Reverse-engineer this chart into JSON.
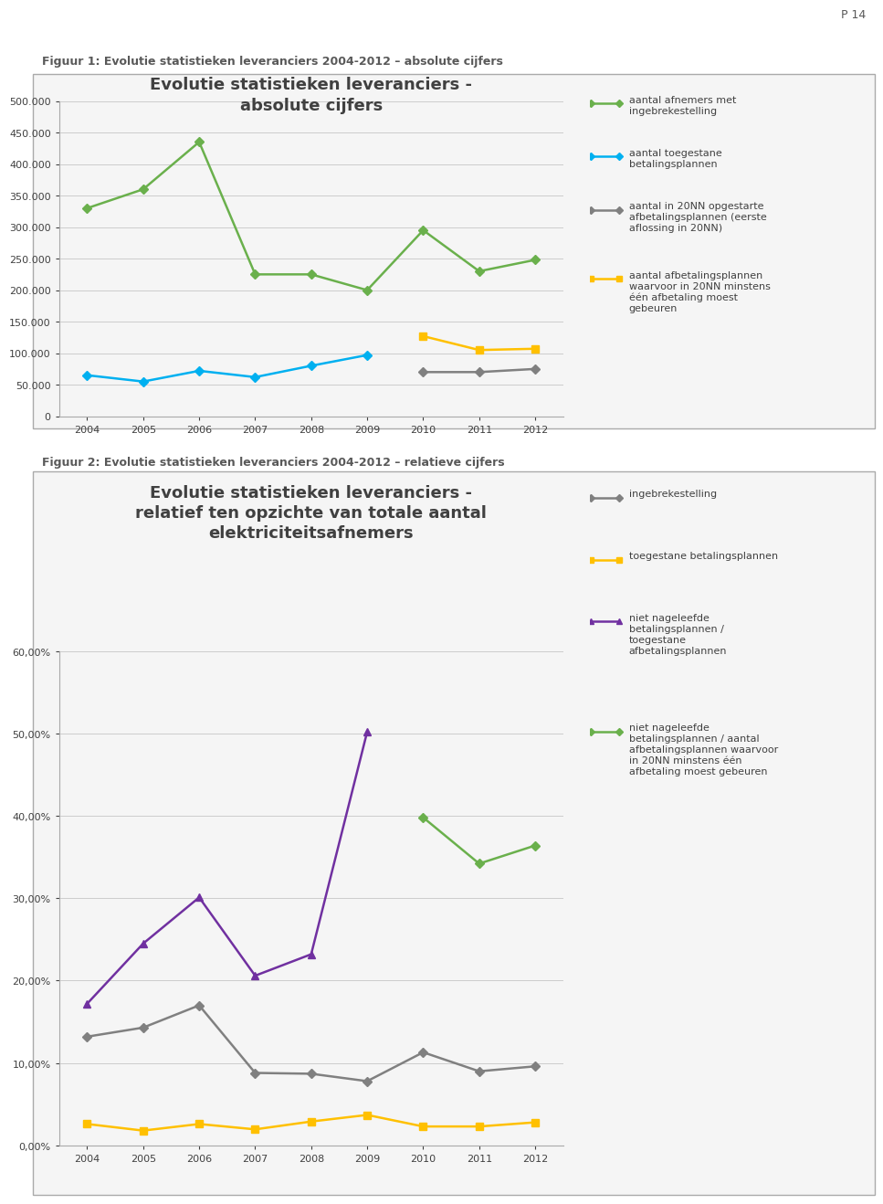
{
  "page_label": "P 14",
  "fig1_caption": "Figuur 1: Evolutie statistieken leveranciers 2004-2012 – absolute cijfers",
  "fig2_caption": "Figuur 2: Evolutie statistieken leveranciers 2004-2012 – relatieve cijfers",
  "chart1_title_line1": "Evolutie statistieken leveranciers -",
  "chart1_title_line2": "absolute cijfers",
  "chart2_title_line1": "Evolutie statistieken leveranciers -",
  "chart2_title_line2": "relatief ten opzichte van totale aantal",
  "chart2_title_line3": "elektriciteitsafnemers",
  "years": [
    2004,
    2005,
    2006,
    2007,
    2008,
    2009,
    2010,
    2011,
    2012
  ],
  "chart1_series": {
    "afnemers_ingebrekestelling": {
      "values": [
        330000,
        360000,
        435000,
        225000,
        225000,
        200000,
        295000,
        230000,
        248000
      ],
      "color": "#6ab04c",
      "marker": "D",
      "label_line1": "aantal afnemers met",
      "label_line2": "ingebrekestelling"
    },
    "toegestane_betalingsplannen": {
      "values": [
        65000,
        55000,
        72000,
        62000,
        80000,
        97000,
        null,
        null,
        null
      ],
      "color": "#00b0f0",
      "marker": "D",
      "label_line1": "aantal toegestane",
      "label_line2": "betalingsplannen"
    },
    "opgestarte_afbetalingsplannen": {
      "values": [
        null,
        null,
        null,
        null,
        null,
        null,
        70000,
        70000,
        75000
      ],
      "color": "#808080",
      "marker": "D",
      "label_line1": "aantal in 20NN opgestarte",
      "label_line2": "afbetalingsplannen (eerste",
      "label_line3": "aflossing in 20NN)"
    },
    "afbetalingsplannen_minstens": {
      "values": [
        null,
        null,
        null,
        null,
        null,
        null,
        127000,
        105000,
        107000
      ],
      "color": "#ffc000",
      "marker": "s",
      "label_line1": "aantal afbetalingsplannen",
      "label_line2": "waarvoor in 20NN minstens",
      "label_line3": "één afbetaling moest",
      "label_line4": "gebeuren"
    }
  },
  "chart1_ylim": [
    0,
    500000
  ],
  "chart1_yticks": [
    0,
    50000,
    100000,
    150000,
    200000,
    250000,
    300000,
    350000,
    400000,
    450000,
    500000
  ],
  "chart2_series": {
    "ingebrekestelling": {
      "values": [
        0.132,
        0.143,
        0.17,
        0.088,
        0.087,
        0.078,
        0.113,
        0.09,
        0.096
      ],
      "color": "#808080",
      "marker": "D",
      "label": "ingebrekestelling"
    },
    "toegestane_betalingsplannen": {
      "values": [
        0.026,
        0.018,
        0.026,
        0.0195,
        0.029,
        0.037,
        0.023,
        0.023,
        0.028
      ],
      "color": "#ffc000",
      "marker": "s",
      "label": "toegestane betalingsplannen"
    },
    "niet_nageleefde_ratio1": {
      "values": [
        0.172,
        0.245,
        0.301,
        0.206,
        0.232,
        0.502,
        null,
        null,
        null
      ],
      "color": "#7030a0",
      "marker": "^",
      "label_line1": "niet nageleefde",
      "label_line2": "betalingsplannen /",
      "label_line3": "toegestane",
      "label_line4": "afbetalingsplannen"
    },
    "niet_nageleefde_ratio2": {
      "values": [
        null,
        null,
        null,
        null,
        null,
        null,
        0.398,
        0.342,
        0.364
      ],
      "color": "#6ab04c",
      "marker": "D",
      "label_line1": "niet nageleefde",
      "label_line2": "betalingsplannen / aantal",
      "label_line3": "afbetalingsplannen waarvoor",
      "label_line4": "in 20NN minstens één",
      "label_line5": "afbetaling moest gebeuren"
    }
  },
  "chart2_ylim": [
    0.0,
    0.6
  ],
  "chart2_yticks": [
    0.0,
    0.1,
    0.2,
    0.3,
    0.4,
    0.5,
    0.6
  ],
  "background_color": "#ffffff",
  "chart_bg_color": "#ffffff",
  "grid_color": "#cccccc",
  "border_color": "#aaaaaa",
  "caption_color": "#595959",
  "title_color": "#404040"
}
